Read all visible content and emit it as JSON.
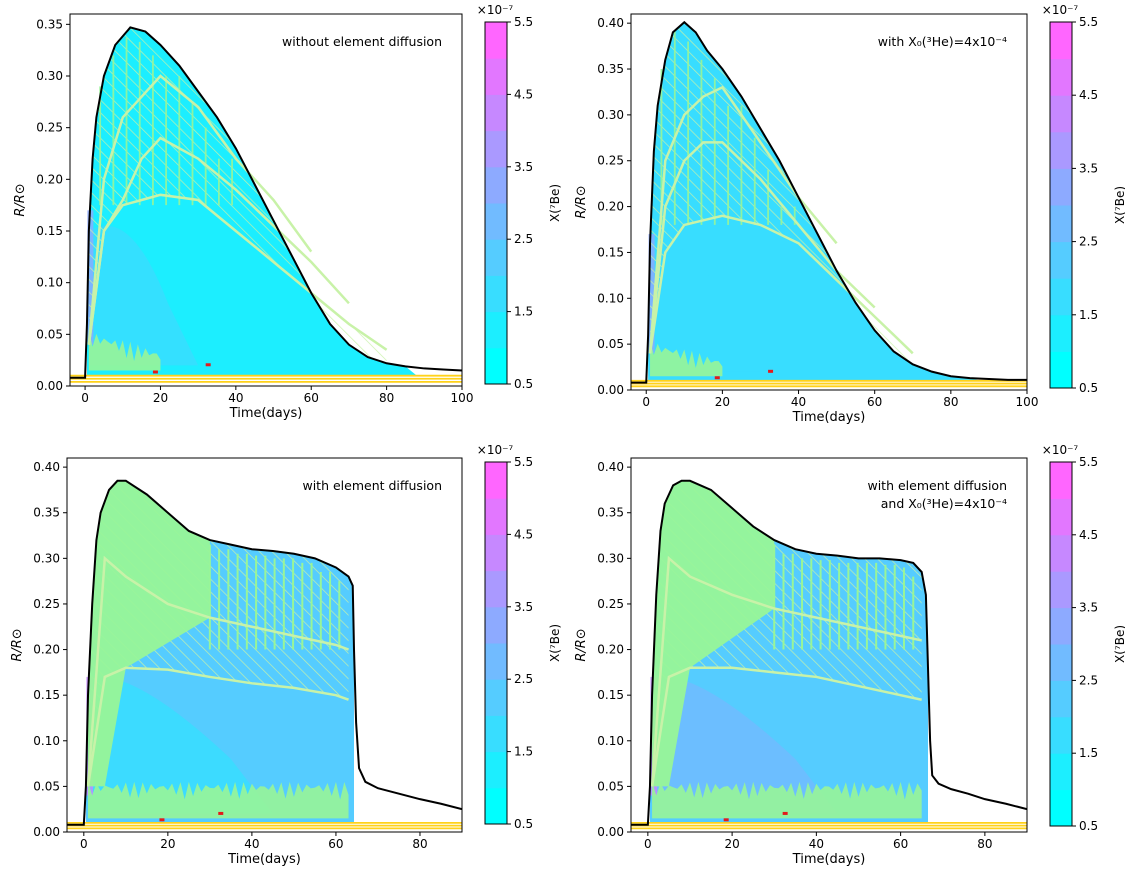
{
  "colorbar": {
    "label": "X(⁷Be)",
    "multiplier": "×10⁻⁷",
    "tick_labels": [
      "5.5",
      "4.5",
      "3.5",
      "2.5",
      "1.5",
      "0.5"
    ],
    "bands": [
      "#00ffff",
      "#1ceeff",
      "#38ddff",
      "#55ccff",
      "#71bbff",
      "#8daaff",
      "#aa99ff",
      "#c688ff",
      "#e277ff",
      "#ff66ff"
    ]
  },
  "colors": {
    "outline": "#000000",
    "convective": "#98f598",
    "hatch": "#c8f2a8",
    "yellow_lines": "#ffd21a",
    "red_spots": "#e31a1c"
  },
  "chart_data": [
    {
      "type": "area",
      "panel": "top-left",
      "annotation": [
        "without element diffusion"
      ],
      "xlabel": "Time(days)",
      "ylabel": "R/R⊙",
      "xlim": [
        -4,
        100
      ],
      "ylim": [
        0,
        0.36
      ],
      "xticks": [
        "0",
        "20",
        "40",
        "60",
        "80",
        "100"
      ],
      "yticks": [
        "0.00",
        "0.05",
        "0.10",
        "0.15",
        "0.20",
        "0.25",
        "0.30",
        "0.35"
      ],
      "radius_curve": {
        "x": [
          -4,
          0,
          0.5,
          1,
          2,
          3,
          5,
          8,
          12,
          16,
          20,
          25,
          30,
          35,
          40,
          45,
          50,
          55,
          60,
          65,
          70,
          75,
          80,
          85,
          90,
          95,
          100
        ],
        "y": [
          0.008,
          0.008,
          0.06,
          0.15,
          0.22,
          0.26,
          0.3,
          0.33,
          0.347,
          0.343,
          0.33,
          0.31,
          0.285,
          0.26,
          0.23,
          0.195,
          0.16,
          0.125,
          0.09,
          0.06,
          0.04,
          0.028,
          0.022,
          0.019,
          0.017,
          0.016,
          0.015
        ]
      },
      "inner_boundaries": [
        {
          "x": [
            1,
            5,
            10,
            15,
            20,
            30,
            40,
            50,
            60,
            70,
            80
          ],
          "y": [
            0.04,
            0.15,
            0.175,
            0.18,
            0.185,
            0.18,
            0.15,
            0.12,
            0.09,
            0.06,
            0.035
          ]
        },
        {
          "x": [
            1,
            5,
            10,
            15,
            20,
            30,
            40,
            50,
            60,
            70
          ],
          "y": [
            0.04,
            0.15,
            0.18,
            0.22,
            0.24,
            0.22,
            0.19,
            0.155,
            0.12,
            0.08
          ]
        },
        {
          "x": [
            1,
            5,
            10,
            15,
            20,
            30,
            40,
            50,
            60
          ],
          "y": [
            0.04,
            0.2,
            0.26,
            0.28,
            0.3,
            0.27,
            0.22,
            0.18,
            0.13
          ]
        }
      ]
    },
    {
      "type": "area",
      "panel": "top-right",
      "annotation": [
        "with X₀(³He)=4x10⁻⁴"
      ],
      "xlabel": "Time(days)",
      "ylabel": "R/R⊙",
      "xlim": [
        -4,
        100
      ],
      "ylim": [
        0,
        0.41
      ],
      "xticks": [
        "0",
        "20",
        "40",
        "60",
        "80",
        "100"
      ],
      "yticks": [
        "0.00",
        "0.05",
        "0.10",
        "0.15",
        "0.20",
        "0.25",
        "0.30",
        "0.35",
        "0.40"
      ],
      "radius_curve": {
        "x": [
          -4,
          0,
          0.5,
          1,
          2,
          3,
          5,
          7,
          10,
          13,
          16,
          20,
          25,
          30,
          35,
          40,
          45,
          50,
          55,
          60,
          65,
          70,
          75,
          80,
          85,
          90,
          95,
          100
        ],
        "y": [
          0.008,
          0.008,
          0.06,
          0.16,
          0.26,
          0.31,
          0.36,
          0.39,
          0.401,
          0.39,
          0.37,
          0.35,
          0.32,
          0.285,
          0.25,
          0.21,
          0.17,
          0.13,
          0.095,
          0.065,
          0.042,
          0.028,
          0.02,
          0.015,
          0.013,
          0.012,
          0.011,
          0.011
        ]
      },
      "inner_boundaries": [
        {
          "x": [
            1,
            5,
            10,
            15,
            20,
            30,
            40,
            50,
            60,
            70
          ],
          "y": [
            0.04,
            0.15,
            0.18,
            0.185,
            0.19,
            0.18,
            0.16,
            0.12,
            0.08,
            0.04
          ]
        },
        {
          "x": [
            1,
            5,
            10,
            15,
            20,
            30,
            40,
            50,
            60
          ],
          "y": [
            0.04,
            0.2,
            0.25,
            0.27,
            0.27,
            0.23,
            0.18,
            0.13,
            0.09
          ]
        },
        {
          "x": [
            1,
            5,
            10,
            15,
            20,
            30,
            40,
            50
          ],
          "y": [
            0.04,
            0.25,
            0.3,
            0.32,
            0.33,
            0.27,
            0.21,
            0.16
          ]
        }
      ]
    },
    {
      "type": "area",
      "panel": "bottom-left",
      "annotation": [
        "with element diffusion"
      ],
      "xlabel": "Time(days)",
      "ylabel": "R/R⊙",
      "xlim": [
        -4,
        90
      ],
      "ylim": [
        0,
        0.41
      ],
      "xticks": [
        "0",
        "20",
        "40",
        "60",
        "80"
      ],
      "yticks": [
        "0.00",
        "0.05",
        "0.10",
        "0.15",
        "0.20",
        "0.25",
        "0.30",
        "0.35",
        "0.40"
      ],
      "radius_curve": {
        "x": [
          -4,
          0,
          0.5,
          1,
          2,
          3,
          4,
          6,
          8,
          10,
          15,
          20,
          25,
          30,
          35,
          40,
          45,
          50,
          55,
          60,
          63,
          64,
          64.3,
          64.8,
          65.5,
          67,
          70,
          75,
          80,
          85,
          90
        ],
        "y": [
          0.008,
          0.008,
          0.05,
          0.15,
          0.25,
          0.32,
          0.35,
          0.375,
          0.385,
          0.385,
          0.37,
          0.35,
          0.33,
          0.32,
          0.315,
          0.31,
          0.308,
          0.305,
          0.3,
          0.29,
          0.28,
          0.27,
          0.2,
          0.12,
          0.07,
          0.055,
          0.048,
          0.042,
          0.036,
          0.031,
          0.025
        ]
      },
      "inner_boundaries": [
        {
          "x": [
            1,
            5,
            10,
            20,
            30,
            40,
            50,
            60,
            63
          ],
          "y": [
            0.05,
            0.17,
            0.18,
            0.178,
            0.17,
            0.163,
            0.158,
            0.15,
            0.145
          ]
        },
        {
          "x": [
            1,
            5,
            10,
            20,
            30,
            40,
            50,
            60,
            63
          ],
          "y": [
            0.05,
            0.3,
            0.28,
            0.25,
            0.235,
            0.225,
            0.215,
            0.205,
            0.2
          ]
        }
      ]
    },
    {
      "type": "area",
      "panel": "bottom-right",
      "annotation": [
        "with element diffusion",
        "and X₀(³He)=4x10⁻⁴"
      ],
      "xlabel": "Time(days)",
      "ylabel": "R/R⊙",
      "xlim": [
        -4,
        90
      ],
      "ylim": [
        0,
        0.41
      ],
      "xticks": [
        "0",
        "20",
        "40",
        "60",
        "80"
      ],
      "yticks": [
        "0.00",
        "0.05",
        "0.10",
        "0.15",
        "0.20",
        "0.25",
        "0.30",
        "0.35",
        "0.40"
      ],
      "radius_curve": {
        "x": [
          -4,
          0,
          0.5,
          1,
          2,
          3,
          4,
          6,
          8,
          10,
          15,
          20,
          25,
          30,
          35,
          40,
          45,
          50,
          55,
          60,
          63,
          65,
          66,
          66.5,
          67,
          67.5,
          69,
          72,
          76,
          80,
          85,
          90
        ],
        "y": [
          0.008,
          0.008,
          0.05,
          0.15,
          0.26,
          0.33,
          0.36,
          0.38,
          0.385,
          0.385,
          0.375,
          0.355,
          0.335,
          0.32,
          0.31,
          0.305,
          0.303,
          0.3,
          0.3,
          0.298,
          0.295,
          0.285,
          0.26,
          0.18,
          0.1,
          0.062,
          0.053,
          0.047,
          0.042,
          0.036,
          0.031,
          0.025
        ]
      },
      "inner_boundaries": [
        {
          "x": [
            1,
            5,
            10,
            20,
            30,
            40,
            50,
            60,
            65
          ],
          "y": [
            0.05,
            0.17,
            0.18,
            0.18,
            0.175,
            0.17,
            0.16,
            0.15,
            0.145
          ]
        },
        {
          "x": [
            1,
            5,
            10,
            20,
            30,
            40,
            50,
            60,
            65
          ],
          "y": [
            0.05,
            0.3,
            0.28,
            0.26,
            0.245,
            0.235,
            0.225,
            0.215,
            0.21
          ]
        }
      ]
    }
  ]
}
